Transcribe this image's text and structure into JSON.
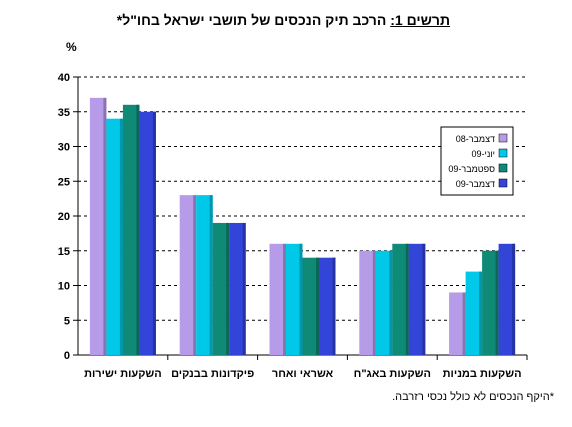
{
  "chart_data": {
    "type": "bar",
    "title_prefix": "תרשים 1:",
    "title": "הרכב תיק הנכסים של תושבי ישראל בחו\"ל*",
    "ylabel": "%",
    "xlabel": "",
    "ylim": [
      0,
      40
    ],
    "yticks": [
      0,
      5,
      10,
      15,
      20,
      25,
      30,
      35,
      40
    ],
    "grid": true,
    "legend_position": "right",
    "categories": [
      "השקעות ישירות",
      "פיקדונות בבנקים",
      "אשראי ואחר",
      "השקעות באג\"ח",
      "השקעות במניות"
    ],
    "series": [
      {
        "name": "דצמבר-08",
        "color": "#B69CE8",
        "values": [
          37,
          23,
          16,
          15,
          9
        ]
      },
      {
        "name": "יוני-09",
        "color": "#00C8E8",
        "values": [
          34,
          23,
          16,
          15,
          12
        ]
      },
      {
        "name": "ספטמבר-09",
        "color": "#0F8A76",
        "values": [
          36,
          19,
          14,
          16,
          15
        ]
      },
      {
        "name": "דצמבר-09",
        "color": "#3344D9",
        "values": [
          35,
          19,
          14,
          16,
          16
        ]
      }
    ],
    "footnote": "*היקף הנכסים לא כולל נכסי רזרבה."
  }
}
